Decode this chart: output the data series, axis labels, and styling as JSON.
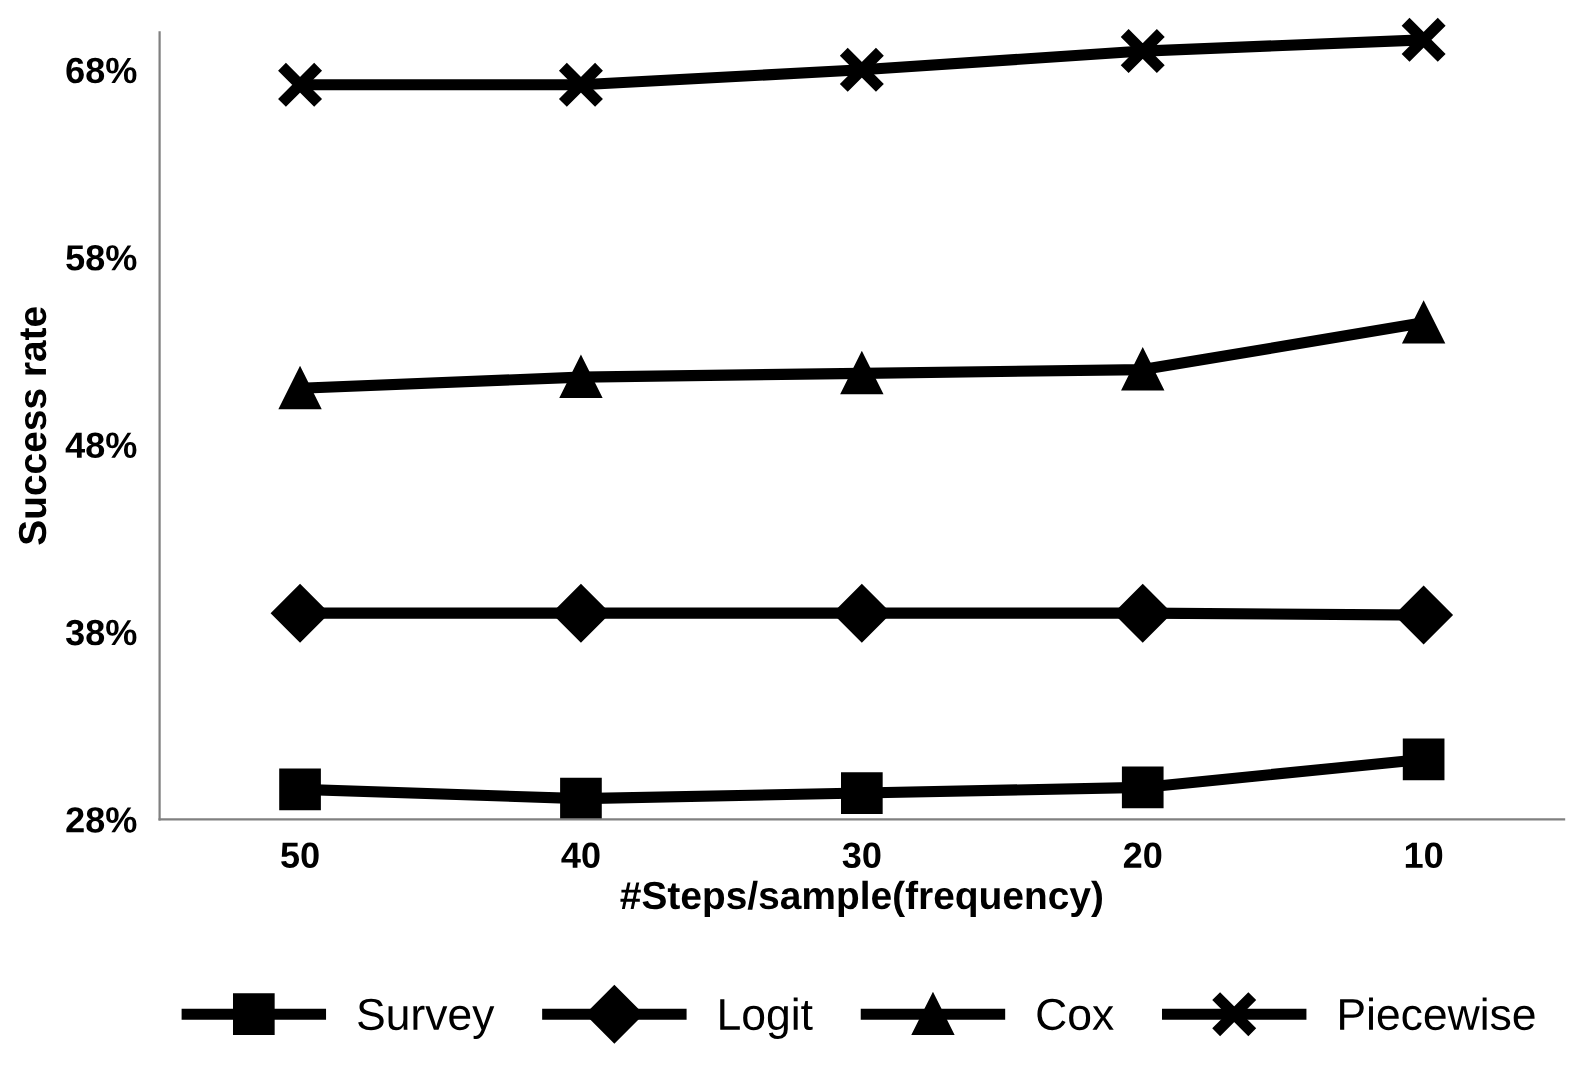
{
  "chart_data": {
    "type": "line",
    "xlabel": "#Steps/sample(frequency)",
    "ylabel": "Success rate",
    "categories": [
      "50",
      "40",
      "30",
      "20",
      "10"
    ],
    "series": [
      {
        "name": "Survey",
        "color": "#000000",
        "marker": "square",
        "values": [
          29.6,
          29.1,
          29.4,
          29.7,
          31.2
        ]
      },
      {
        "name": "Logit",
        "color": "#000000",
        "marker": "diamond",
        "values": [
          39.0,
          39.0,
          39.0,
          39.0,
          38.9
        ]
      },
      {
        "name": "Cox",
        "color": "#000000",
        "marker": "triangle",
        "values": [
          51.0,
          51.6,
          51.8,
          52.0,
          54.5
        ]
      },
      {
        "name": "Piecewise",
        "color": "#000000",
        "marker": "cross",
        "values": [
          67.2,
          67.2,
          68.0,
          69.0,
          69.6
        ]
      }
    ],
    "ylim": [
      28,
      70
    ],
    "yticks": [
      {
        "value": 28,
        "label": "28%"
      },
      {
        "value": 38,
        "label": "38%"
      },
      {
        "value": 48,
        "label": "48%"
      },
      {
        "value": 58,
        "label": "58%"
      },
      {
        "value": 68,
        "label": "68%"
      }
    ],
    "grid": false,
    "legend": "bottom",
    "line_style": "solid"
  }
}
